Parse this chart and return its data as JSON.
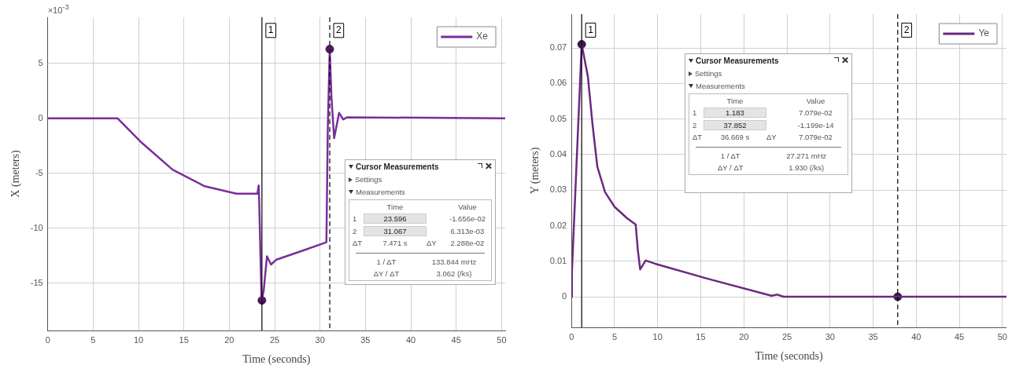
{
  "chart_data": [
    {
      "type": "line",
      "xlabel": "Time (seconds)",
      "ylabel": "X (meters)",
      "annotations": [
        {
          "text": "1",
          "x": 23.596,
          "y": 8
        },
        {
          "text": "2",
          "x": 31.067,
          "y": 8
        },
        "×10$^{-3}$",
        "Cursor Measurements",
        "Settings",
        "Measurements",
        "Time",
        "Value",
        "1",
        "23.596",
        "-1.656e-02",
        "2",
        "31.067",
        "6.313e-03",
        "ΔT",
        "7.471 s",
        "ΔY",
        "2.288e-02",
        "1 / ΔT",
        "133.844 mHz",
        "ΔY / ΔT",
        "3.062 (/ks)"
      ],
      "x": [
        0,
        7.7,
        10.2,
        13.75,
        17.3,
        20.8,
        23.1,
        23.24,
        23.3,
        23.55,
        23.596,
        23.8,
        24.15,
        24.6,
        25.2,
        27.85,
        30.7,
        30.85,
        31.067,
        31.25,
        31.55,
        32.1,
        32.55,
        33,
        50.4
      ],
      "series": [
        {
          "name": "Xe",
          "color": "#7b2d9b",
          "values": [
            0,
            0,
            -2.1,
            -4.67,
            -6.18,
            -6.85,
            -6.85,
            -6.1,
            -7.7,
            -16.5,
            -16.56,
            -15.6,
            -12.55,
            -13.3,
            -12.85,
            -12.1,
            -11.27,
            -1,
            6.3,
            2,
            -1.8,
            0.5,
            -0.1,
            0.1,
            0
          ]
        },
        {
          "type": "scatter",
          "color": "#4a1a5a",
          "x": [
            23.596,
            31.067
          ],
          "values": [
            -16.56,
            6.3
          ]
        }
      ],
      "xlim": [
        0,
        50.4
      ],
      "xticks": [
        0,
        5,
        10,
        15,
        20,
        25,
        30,
        35,
        40,
        45,
        50
      ],
      "ylim": [
        -19.3,
        9.2
      ],
      "yticks": [
        -15,
        -10,
        -5,
        0,
        5
      ],
      "grid": true,
      "legend": "top right",
      "ref_lines": [
        {
          "axis": "x",
          "value": 23.596,
          "color": "#000000",
          "line_style": "solid"
        },
        {
          "axis": "x",
          "value": 31.067,
          "color": "#000000",
          "line_style": "dashed"
        }
      ]
    },
    {
      "type": "line",
      "xlabel": "Time (seconds)",
      "ylabel": "Y (meters)",
      "annotations": [
        {
          "text": "1",
          "x": 1.183,
          "y": 0.075
        },
        {
          "text": "2",
          "x": 37.852,
          "y": 0.075
        },
        "Cursor Measurements",
        "Settings",
        "Measurements",
        "Time",
        "Value",
        "1",
        "1.183",
        "7.079e-02",
        "2",
        "37.852",
        "-1.199e-14",
        "ΔT",
        "36.669 s",
        "ΔY",
        "7.079e-02",
        "1 / ΔT",
        "27.271 mHz",
        "ΔY / ΔT",
        "1.930 (/ks)"
      ],
      "x": [
        0,
        0.05,
        1.183,
        1.9,
        2.45,
        3.0,
        3.9,
        5.0,
        6.45,
        7.45,
        7.7,
        7.97,
        8.6,
        9.7,
        15.9,
        23.2,
        23.9,
        24.6,
        50.47
      ],
      "series": [
        {
          "name": "Ye",
          "color": "#6a2a80",
          "values": [
            0,
            0.007,
            0.071,
            0.062,
            0.0483,
            0.0366,
            0.0294,
            0.0253,
            0.0221,
            0.0203,
            0.0131,
            0.0077,
            0.0102,
            0.0093,
            0.005,
            0.0003,
            0.0006,
            0,
            0
          ]
        },
        {
          "type": "scatter",
          "color": "#3a1a4a",
          "x": [
            1.183,
            37.852
          ],
          "values": [
            0.071,
            0
          ]
        }
      ],
      "xlim": [
        0,
        50.47
      ],
      "xticks": [
        0,
        5,
        10,
        15,
        20,
        25,
        30,
        35,
        40,
        45,
        50
      ],
      "ylim": [
        -0.0086,
        0.0795
      ],
      "yticks": [
        0,
        0.01,
        0.02,
        0.03,
        0.04,
        0.05,
        0.06,
        0.07
      ],
      "grid": true,
      "legend": "top right",
      "ref_lines": [
        {
          "axis": "x",
          "value": 1.183,
          "color": "#000000",
          "line_style": "solid"
        },
        {
          "axis": "x",
          "value": 37.852,
          "color": "#000000",
          "line_style": "dashed"
        }
      ]
    }
  ]
}
